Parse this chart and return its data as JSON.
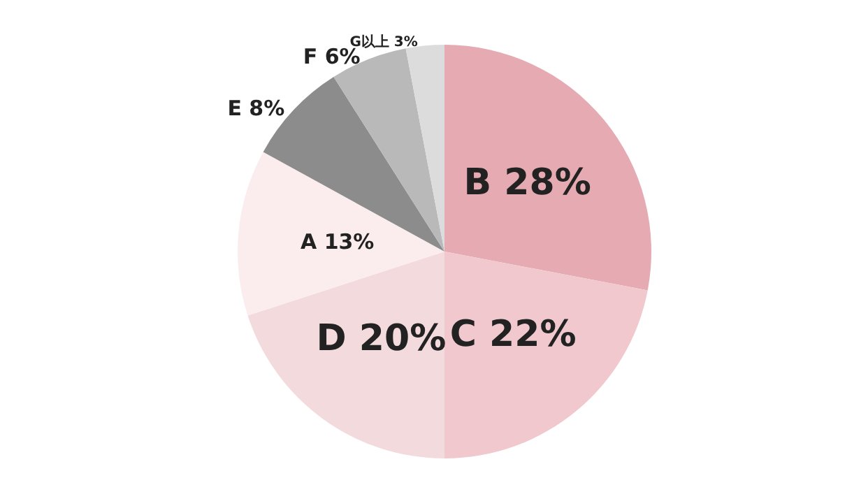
{
  "chart_data": {
    "type": "pie",
    "categories": [
      "B",
      "C",
      "D",
      "A",
      "E",
      "F",
      "G以上"
    ],
    "values": [
      28,
      22,
      20,
      13,
      8,
      6,
      3
    ],
    "value_labels": [
      "28%",
      "22%",
      "20%",
      "13%",
      "8%",
      "6%",
      "3%"
    ],
    "colors": [
      "#e6aab3",
      "#f0c8cd",
      "#f3dadd",
      "#fbeced",
      "#8c8c8c",
      "#b9b9b9",
      "#dcdcdc"
    ],
    "legend": false
  }
}
